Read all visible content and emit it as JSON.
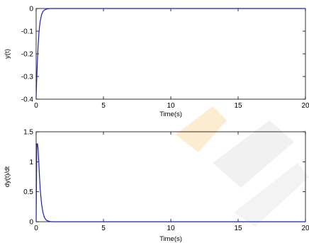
{
  "chart_data": [
    {
      "type": "line",
      "ylabel": "y(t)",
      "xlabel": "Time(s)",
      "xlim": [
        0,
        20
      ],
      "ylim": [
        -0.4,
        0
      ],
      "xticks": [
        "0",
        "5",
        "10",
        "15",
        "20"
      ],
      "yticks": [
        "-0.4",
        "-0.3",
        "-0.2",
        "-0.1",
        "0"
      ],
      "grid": false,
      "series": [
        {
          "color": "#1f1fb8",
          "x": [
            0,
            0.05,
            0.1,
            0.15,
            0.2,
            0.25,
            0.3,
            0.4,
            0.5,
            0.6,
            0.8,
            1.0,
            1.5,
            20
          ],
          "y": [
            -0.39,
            -0.3,
            -0.22,
            -0.16,
            -0.115,
            -0.08,
            -0.057,
            -0.028,
            -0.014,
            -0.007,
            -0.002,
            0,
            0,
            0
          ]
        }
      ]
    },
    {
      "type": "line",
      "ylabel": "dy(t)/dt",
      "xlabel": "Time(s)",
      "xlim": [
        0,
        20
      ],
      "ylim": [
        0,
        1.5
      ],
      "xticks": [
        "0",
        "5",
        "10",
        "15",
        "20"
      ],
      "yticks": [
        "0",
        "0.5",
        "1",
        "1.5"
      ],
      "grid": false,
      "series": [
        {
          "color": "#1f1fb8",
          "x": [
            0,
            0.05,
            0.1,
            0.15,
            0.2,
            0.25,
            0.3,
            0.4,
            0.5,
            0.6,
            0.7,
            0.8,
            1.0,
            1.2,
            20
          ],
          "y": [
            0,
            1.3,
            1.3,
            1.2,
            0.98,
            0.75,
            0.55,
            0.3,
            0.16,
            0.08,
            0.04,
            0.02,
            0.005,
            0,
            0
          ]
        }
      ]
    }
  ],
  "colors": {
    "watermark_orange": "#f7c877",
    "watermark_gray": "#d8d8d8",
    "axis": "#000000"
  }
}
